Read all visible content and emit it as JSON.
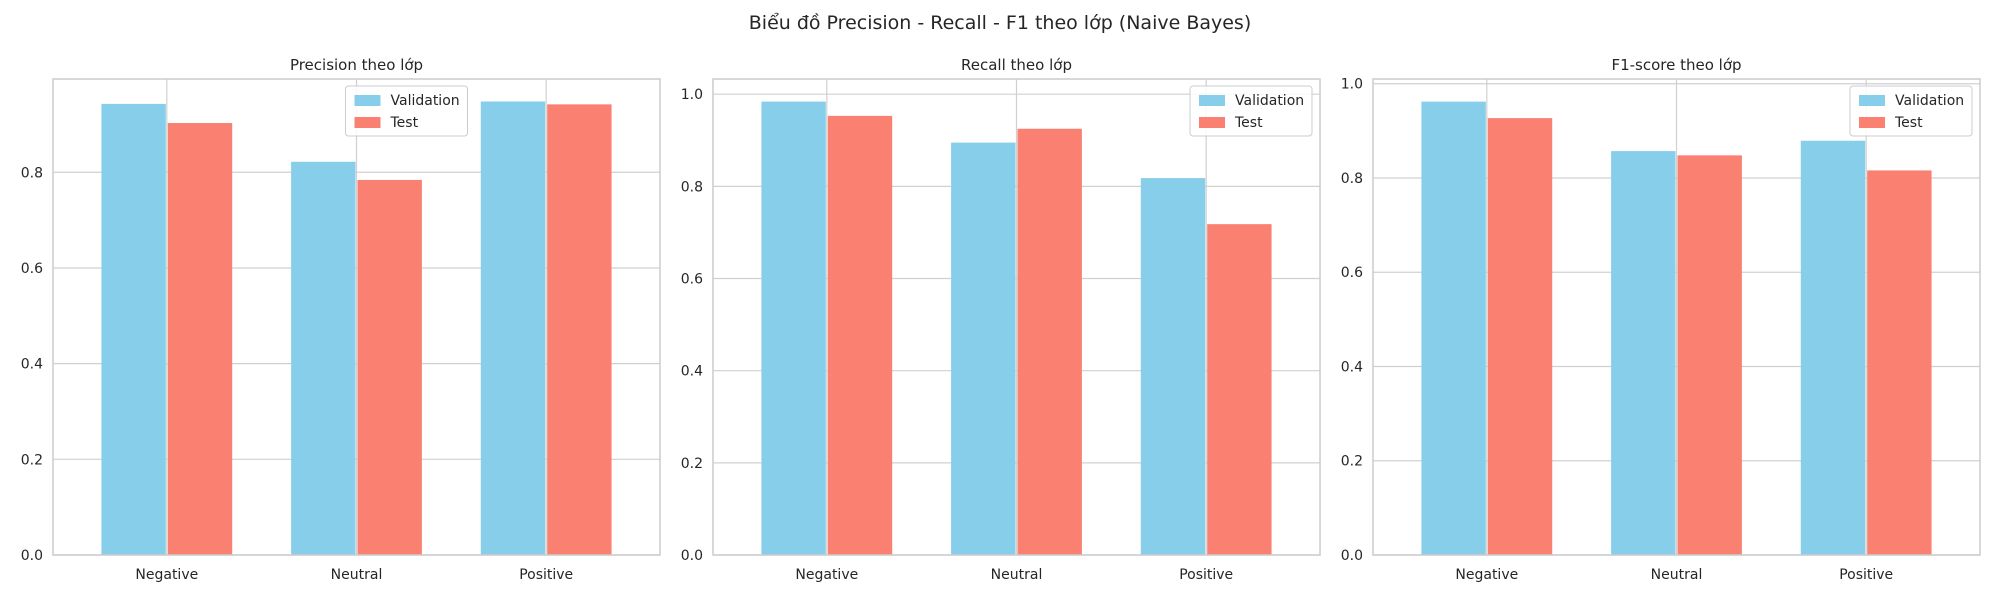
{
  "figure": {
    "title": "Biểu đồ Precision - Recall - F1 theo lớp (Naive Bayes)"
  },
  "colors": {
    "validation": "#87CEEB",
    "test": "#FA8072",
    "grid": "#d0d0d0",
    "frame": "#cccccc"
  },
  "chart_data": [
    {
      "type": "bar",
      "title": "Precision theo lớp",
      "categories": [
        "Negative",
        "Neutral",
        "Positive"
      ],
      "series": [
        {
          "name": "Validation",
          "values": [
            0.943,
            0.822,
            0.948
          ]
        },
        {
          "name": "Test",
          "values": [
            0.903,
            0.784,
            0.942
          ]
        }
      ],
      "ylim": [
        0,
        0.995
      ],
      "yticks": [
        0.0,
        0.2,
        0.4,
        0.6,
        0.8
      ],
      "ytick_labels": [
        "0.0",
        "0.2",
        "0.4",
        "0.6",
        "0.8"
      ],
      "grid": true,
      "legend": "upper-center"
    },
    {
      "type": "bar",
      "title": "Recall theo lớp",
      "categories": [
        "Negative",
        "Neutral",
        "Positive"
      ],
      "series": [
        {
          "name": "Validation",
          "values": [
            0.984,
            0.895,
            0.818
          ]
        },
        {
          "name": "Test",
          "values": [
            0.953,
            0.925,
            0.718
          ]
        }
      ],
      "ylim": [
        0,
        1.033
      ],
      "yticks": [
        0.0,
        0.2,
        0.4,
        0.6,
        0.8,
        1.0
      ],
      "ytick_labels": [
        "0.0",
        "0.2",
        "0.4",
        "0.6",
        "0.8",
        "1.0"
      ],
      "grid": true,
      "legend": "upper-right"
    },
    {
      "type": "bar",
      "title": "F1-score theo lớp",
      "categories": [
        "Negative",
        "Neutral",
        "Positive"
      ],
      "series": [
        {
          "name": "Validation",
          "values": [
            0.962,
            0.857,
            0.879
          ]
        },
        {
          "name": "Test",
          "values": [
            0.927,
            0.848,
            0.816
          ]
        }
      ],
      "ylim": [
        0,
        1.01
      ],
      "yticks": [
        0.0,
        0.2,
        0.4,
        0.6,
        0.8,
        1.0
      ],
      "ytick_labels": [
        "0.0",
        "0.2",
        "0.4",
        "0.6",
        "0.8",
        "1.0"
      ],
      "grid": true,
      "legend": "upper-right"
    }
  ]
}
